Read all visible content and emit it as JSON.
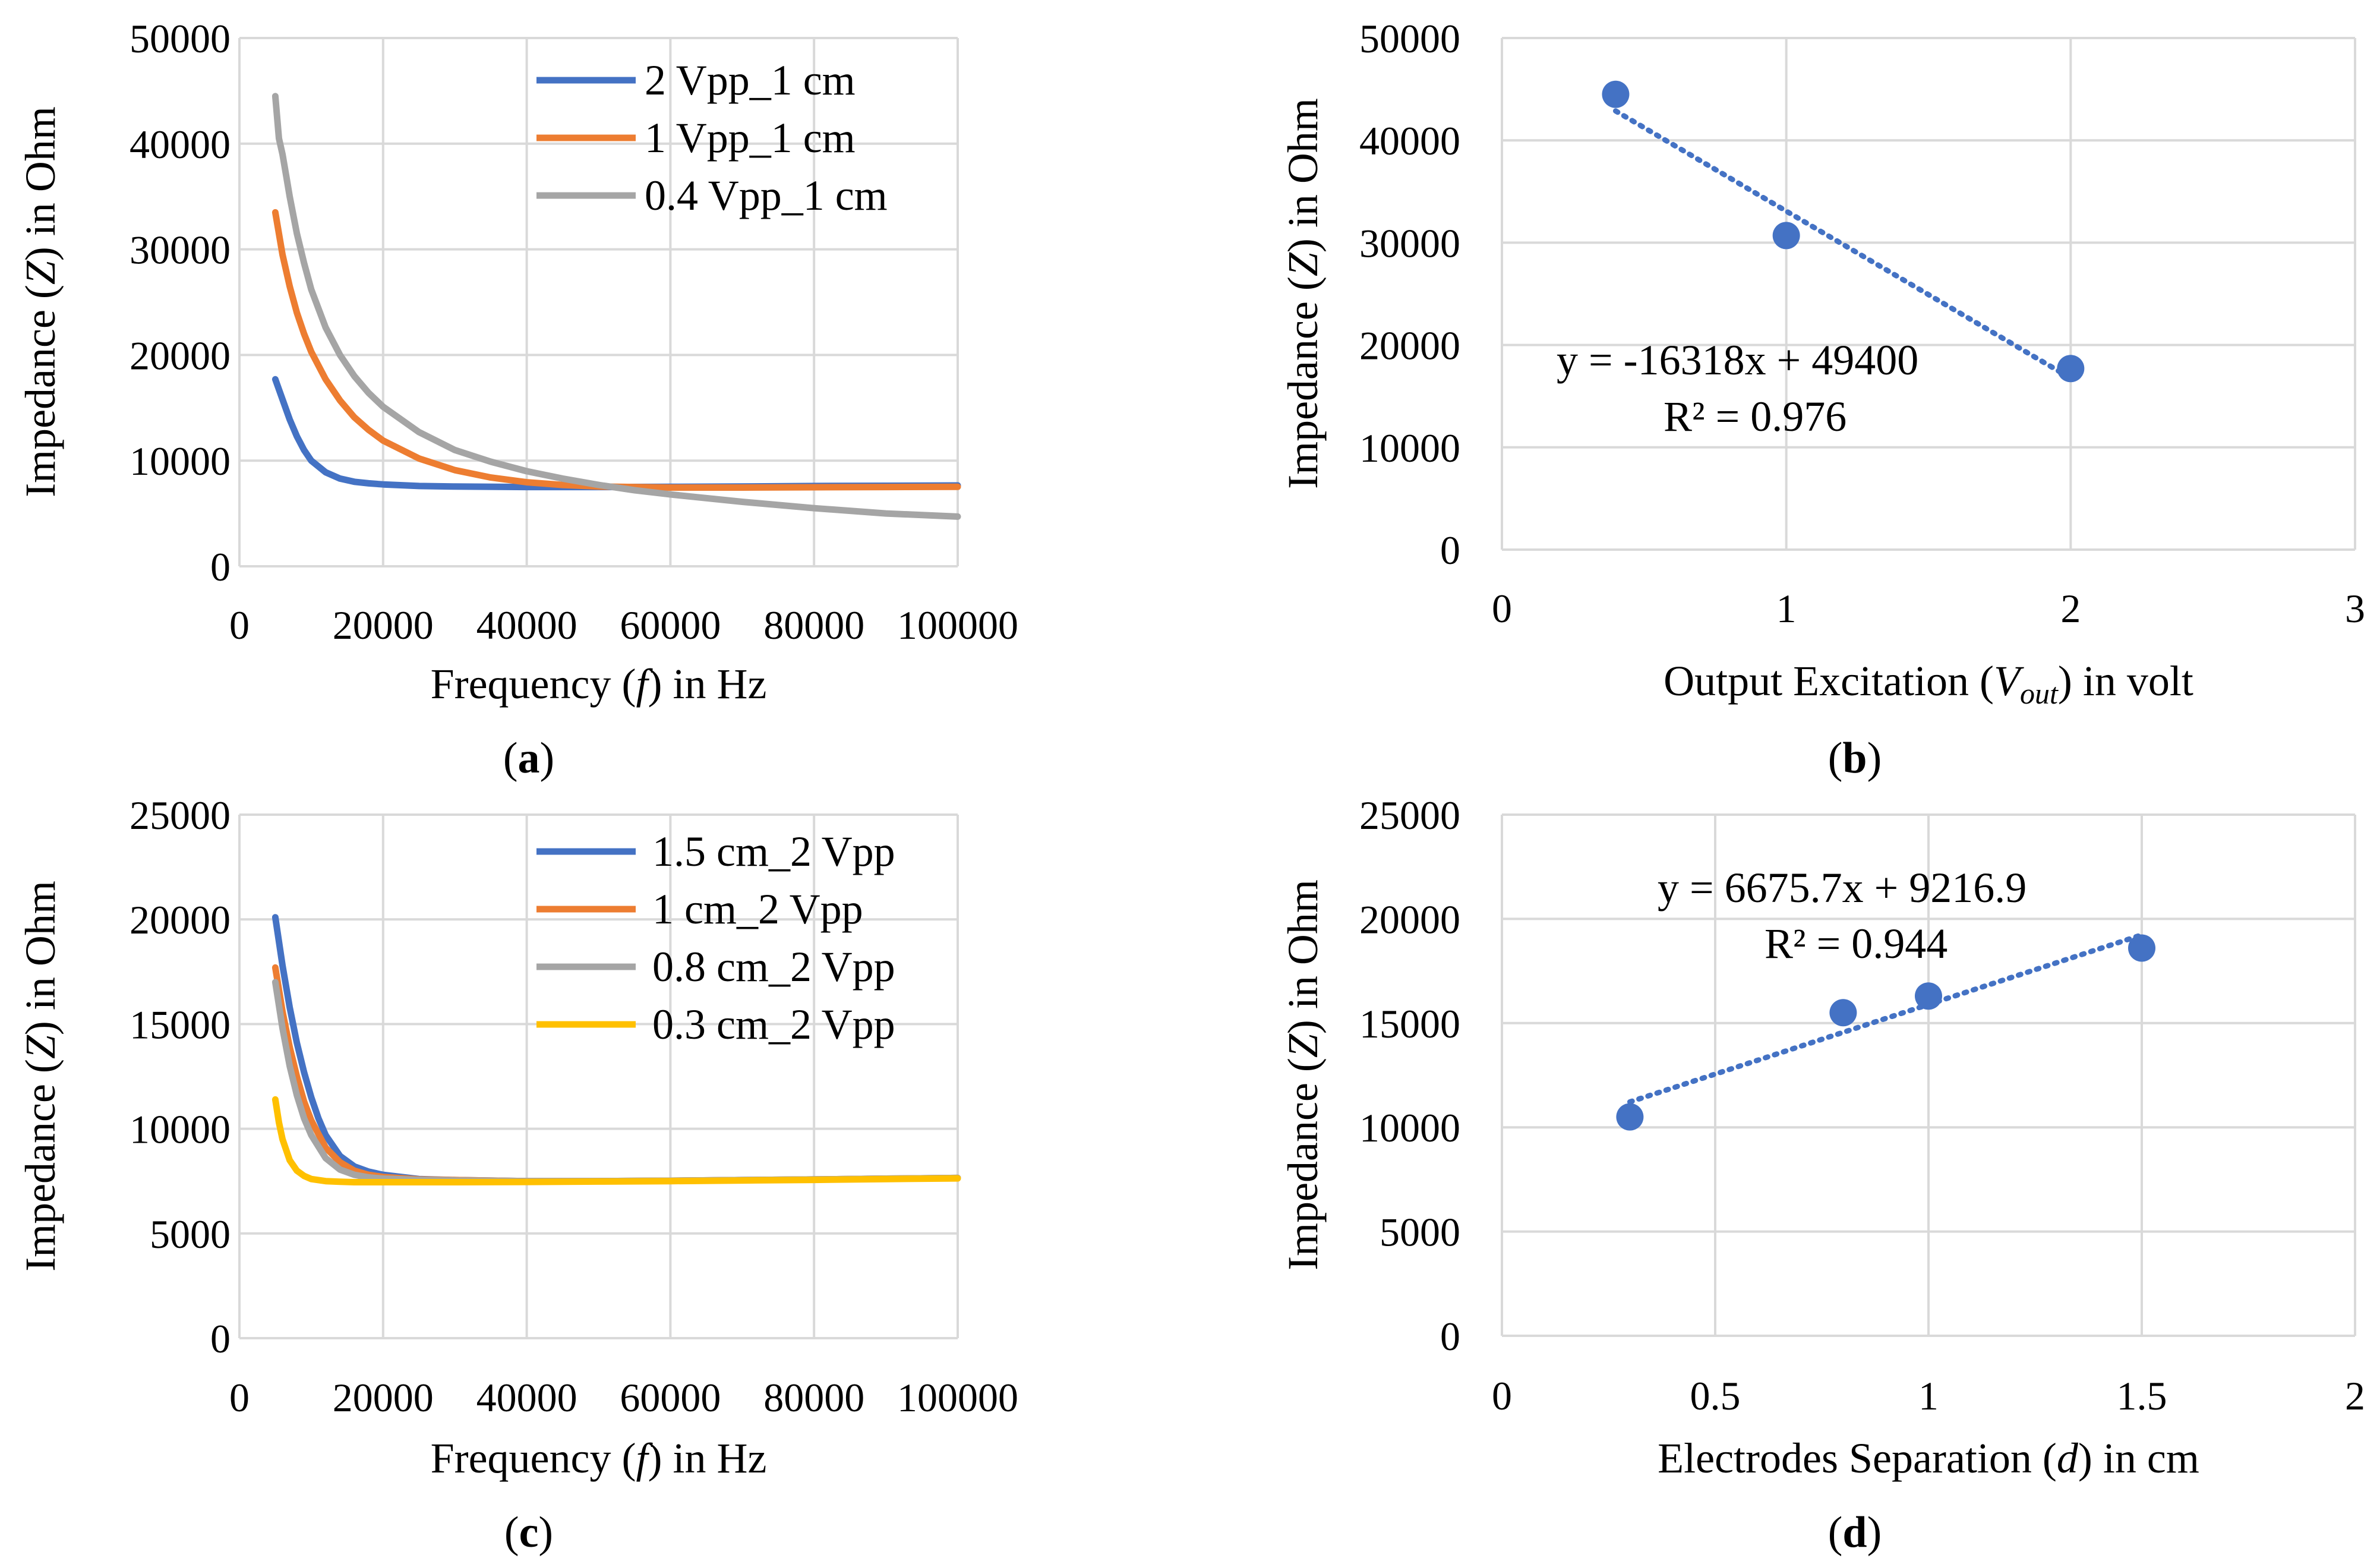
{
  "colors": {
    "blue": "#4472c4",
    "orange": "#ed7d31",
    "gray": "#a5a5a5",
    "yellow": "#ffc000",
    "grid": "#d9d9d9"
  },
  "chart_data": [
    {
      "id": "a",
      "type": "line",
      "panel_label": "a",
      "xlabel": {
        "pre": "Frequency (",
        "var": "f",
        "sub": "",
        "post": ") in Hz"
      },
      "ylabel": {
        "pre": "Impedance  (",
        "var": "Z",
        "post": ") in Ohm"
      },
      "xlim": [
        0,
        100000
      ],
      "ylim": [
        0,
        50000
      ],
      "xticks": [
        0,
        20000,
        40000,
        60000,
        80000,
        100000
      ],
      "yticks": [
        0,
        10000,
        20000,
        30000,
        40000,
        50000
      ],
      "legend_position": "top-right",
      "series": [
        {
          "name": "2 Vpp_1 cm",
          "color": "#4472c4",
          "x": [
            5000,
            6000,
            7000,
            8000,
            9000,
            10000,
            12000,
            14000,
            16000,
            18000,
            20000,
            25000,
            30000,
            40000,
            50000,
            60000,
            70000,
            80000,
            90000,
            100000
          ],
          "y": [
            17700,
            15800,
            13900,
            12300,
            11000,
            10000,
            8900,
            8300,
            8000,
            7850,
            7750,
            7600,
            7550,
            7500,
            7500,
            7520,
            7550,
            7600,
            7620,
            7650
          ]
        },
        {
          "name": "1 Vpp_1 cm",
          "color": "#ed7d31",
          "x": [
            5000,
            6000,
            7000,
            8000,
            9000,
            10000,
            12000,
            14000,
            16000,
            18000,
            20000,
            25000,
            30000,
            35000,
            40000,
            45000,
            50000,
            60000,
            70000,
            80000,
            90000,
            100000
          ],
          "y": [
            33500,
            29500,
            26500,
            24000,
            22000,
            20300,
            17700,
            15700,
            14100,
            12900,
            11900,
            10200,
            9100,
            8400,
            7950,
            7700,
            7550,
            7450,
            7450,
            7480,
            7500,
            7520
          ]
        },
        {
          "name": "0.4 Vpp_1 cm",
          "color": "#a5a5a5",
          "x": [
            5000,
            5500,
            6000,
            6500,
            7000,
            8000,
            9000,
            10000,
            12000,
            14000,
            16000,
            18000,
            20000,
            25000,
            30000,
            35000,
            40000,
            45000,
            50000,
            55000,
            60000,
            70000,
            80000,
            90000,
            100000
          ],
          "y": [
            44500,
            40500,
            39000,
            37000,
            35000,
            31500,
            28700,
            26200,
            22600,
            20000,
            18000,
            16400,
            15100,
            12700,
            11000,
            9900,
            9000,
            8300,
            7700,
            7200,
            6800,
            6100,
            5500,
            5000,
            4700
          ]
        }
      ]
    },
    {
      "id": "b",
      "type": "scatter",
      "panel_label": "b",
      "xlabel": {
        "pre": "Output Excitation (",
        "var": "V",
        "sub": "out",
        "post": ") in volt"
      },
      "ylabel": {
        "pre": "Impedance (",
        "var": "Z",
        "post": ") in Ohm"
      },
      "xlim": [
        0,
        3
      ],
      "ylim": [
        0,
        50000
      ],
      "xticks": [
        0,
        1,
        2,
        3
      ],
      "yticks": [
        0,
        10000,
        20000,
        30000,
        40000,
        50000
      ],
      "points": {
        "x": [
          0.4,
          1,
          2
        ],
        "y": [
          44500,
          30700,
          17700
        ]
      },
      "trendline": {
        "slope": -16318,
        "intercept": 49400,
        "x_range": [
          0.4,
          2
        ]
      },
      "equation": "y = -16318x + 49400",
      "r_squared": "R² = 0.976",
      "color": "#4472c4"
    },
    {
      "id": "c",
      "type": "line",
      "panel_label": "c",
      "xlabel": {
        "pre": "Frequency (",
        "var": "f",
        "sub": "",
        "post": ") in Hz"
      },
      "ylabel": {
        "pre": "Impedance (",
        "var": "Z",
        "post": ") in Ohm"
      },
      "xlim": [
        0,
        100000
      ],
      "ylim": [
        0,
        25000
      ],
      "xticks": [
        0,
        20000,
        40000,
        60000,
        80000,
        100000
      ],
      "yticks": [
        0,
        5000,
        10000,
        15000,
        20000,
        25000
      ],
      "legend_position": "top-right",
      "series": [
        {
          "name": "1.5 cm_2 Vpp",
          "color": "#4472c4",
          "x": [
            5000,
            6000,
            7000,
            8000,
            9000,
            10000,
            11000,
            12000,
            14000,
            16000,
            18000,
            20000,
            25000,
            30000,
            40000,
            50000,
            60000,
            70000,
            80000,
            90000,
            100000
          ],
          "y": [
            20100,
            17800,
            15800,
            14100,
            12700,
            11500,
            10500,
            9700,
            8700,
            8200,
            7950,
            7800,
            7600,
            7550,
            7500,
            7500,
            7520,
            7550,
            7580,
            7620,
            7650
          ]
        },
        {
          "name": "1 cm_2 Vpp",
          "color": "#ed7d31",
          "x": [
            5000,
            6000,
            7000,
            8000,
            9000,
            10000,
            12000,
            14000,
            16000,
            18000,
            20000,
            25000,
            30000,
            40000,
            50000,
            60000,
            70000,
            80000,
            90000,
            100000
          ],
          "y": [
            17700,
            15600,
            13900,
            12500,
            11300,
            10400,
            9100,
            8400,
            8000,
            7800,
            7700,
            7580,
            7550,
            7500,
            7500,
            7520,
            7550,
            7580,
            7620,
            7650
          ]
        },
        {
          "name": "0.8 cm_2 Vpp",
          "color": "#a5a5a5",
          "x": [
            5000,
            6000,
            7000,
            8000,
            9000,
            10000,
            12000,
            14000,
            16000,
            18000,
            20000,
            25000,
            30000,
            40000,
            50000,
            60000,
            70000,
            80000,
            90000,
            100000
          ],
          "y": [
            17000,
            14800,
            13000,
            11600,
            10500,
            9700,
            8600,
            8050,
            7800,
            7680,
            7620,
            7560,
            7530,
            7500,
            7500,
            7520,
            7550,
            7580,
            7620,
            7650
          ]
        },
        {
          "name": "0.3 cm_2 Vpp",
          "color": "#ffc000",
          "x": [
            5000,
            5500,
            6000,
            7000,
            8000,
            9000,
            10000,
            12000,
            14000,
            16000,
            20000,
            30000,
            40000,
            50000,
            60000,
            70000,
            80000,
            90000,
            100000
          ],
          "y": [
            11400,
            10300,
            9500,
            8500,
            8000,
            7750,
            7600,
            7500,
            7470,
            7450,
            7450,
            7450,
            7460,
            7480,
            7500,
            7530,
            7560,
            7600,
            7630
          ]
        }
      ]
    },
    {
      "id": "d",
      "type": "scatter",
      "panel_label": "d",
      "xlabel": {
        "pre": "Electrodes Separation (",
        "var": "d",
        "sub": "",
        "post": ") in cm"
      },
      "ylabel": {
        "pre": "Impedance (",
        "var": "Z",
        "post": ") in Ohm"
      },
      "xlim": [
        0,
        2
      ],
      "ylim": [
        0,
        25000
      ],
      "xticks": [
        0,
        0.5,
        1,
        1.5,
        2
      ],
      "yticks": [
        0,
        5000,
        10000,
        15000,
        20000,
        25000
      ],
      "points": {
        "x": [
          0.3,
          0.8,
          1,
          1.5
        ],
        "y": [
          10500,
          15500,
          16300,
          18600
        ]
      },
      "trendline": {
        "slope": 6675.7,
        "intercept": 9216.9,
        "x_range": [
          0.3,
          1.5
        ]
      },
      "equation": "y = 6675.7x + 9216.9",
      "r_squared": "R² = 0.944",
      "color": "#4472c4"
    }
  ]
}
